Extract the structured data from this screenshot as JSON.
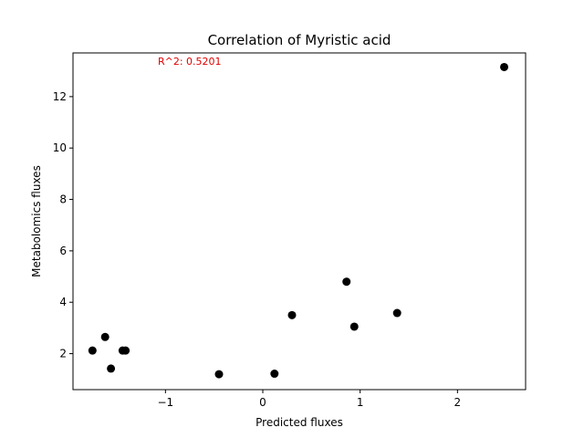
{
  "chart_data": {
    "type": "scatter",
    "title": "Correlation of Myristic acid",
    "xlabel": "Predicted fluxes",
    "ylabel": "Metabolomics fluxes",
    "annotation": {
      "text": "R^2: 0.5201",
      "color": "#e00000"
    },
    "marker_color": "#000000",
    "xlim": [
      -1.95,
      2.7
    ],
    "ylim": [
      0.6,
      13.7
    ],
    "x_ticks": [
      {
        "value": -1,
        "label": "−1"
      },
      {
        "value": 0,
        "label": "0"
      },
      {
        "value": 1,
        "label": "1"
      },
      {
        "value": 2,
        "label": "2"
      }
    ],
    "y_ticks": [
      {
        "value": 2,
        "label": "2"
      },
      {
        "value": 4,
        "label": "4"
      },
      {
        "value": 6,
        "label": "6"
      },
      {
        "value": 8,
        "label": "8"
      },
      {
        "value": 10,
        "label": "10"
      },
      {
        "value": 12,
        "label": "12"
      }
    ],
    "grid": false,
    "points": [
      {
        "x": -1.75,
        "y": 2.12
      },
      {
        "x": -1.62,
        "y": 2.65
      },
      {
        "x": -1.56,
        "y": 1.42
      },
      {
        "x": -1.44,
        "y": 2.12
      },
      {
        "x": -1.41,
        "y": 2.12
      },
      {
        "x": -0.45,
        "y": 1.2
      },
      {
        "x": 0.12,
        "y": 1.22
      },
      {
        "x": 0.3,
        "y": 3.5
      },
      {
        "x": 0.86,
        "y": 4.8
      },
      {
        "x": 0.94,
        "y": 3.05
      },
      {
        "x": 1.38,
        "y": 3.58
      },
      {
        "x": 2.48,
        "y": 13.15
      }
    ]
  }
}
